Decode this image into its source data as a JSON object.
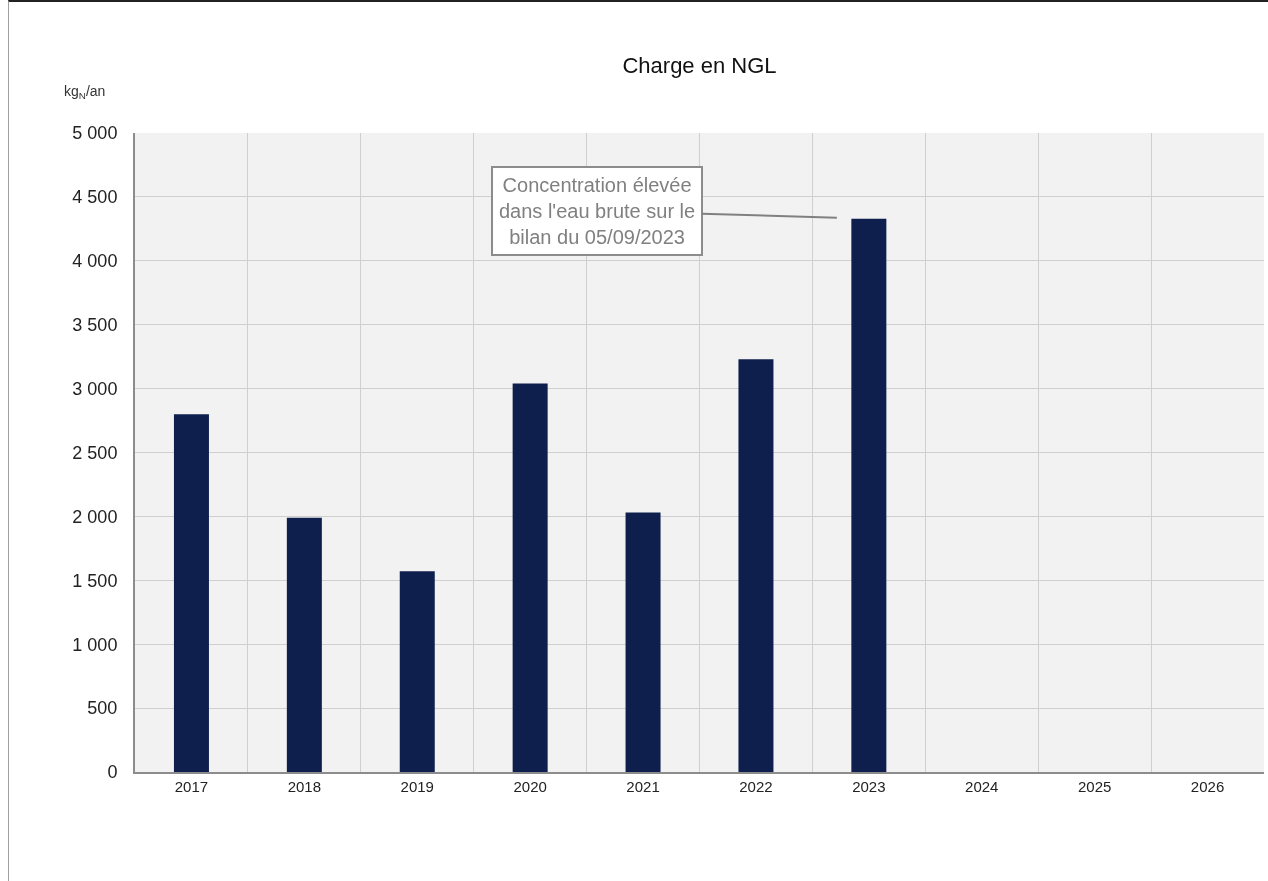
{
  "chart_data": {
    "type": "bar",
    "title": "Charge en NGL",
    "ylabel": "kg$_{N}$/an",
    "categories": [
      "2017",
      "2018",
      "2019",
      "2020",
      "2021",
      "2022",
      "2023",
      "2024",
      "2025",
      "2026"
    ],
    "values": [
      2800,
      1990,
      1570,
      3040,
      2030,
      3230,
      4330,
      null,
      null,
      null
    ],
    "color": "#0e1f4d",
    "ylim": [
      0,
      5000
    ],
    "yticks": [
      0,
      500,
      {
        "value": 1000,
        "label": "1 000"
      },
      {
        "value": 1500,
        "label": "1 500"
      },
      {
        "value": 2000,
        "label": "2 000"
      },
      {
        "value": 2500,
        "label": "2 500"
      },
      {
        "value": 3000,
        "label": "3 000"
      },
      {
        "value": 3500,
        "label": "3 500"
      },
      {
        "value": 4000,
        "label": "4 000"
      },
      {
        "value": 4500,
        "label": "4 500"
      },
      {
        "value": 5000,
        "label": "5 000"
      }
    ],
    "grid": true,
    "annotations": [
      {
        "text": "Concentration élevée dans l'eau brute sur le bilan du 05/09/2023",
        "x": "2023",
        "y": 4330
      }
    ]
  }
}
